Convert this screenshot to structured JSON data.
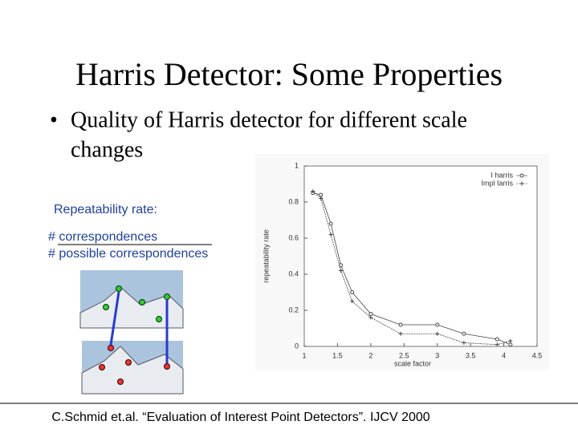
{
  "slide": {
    "title": "Harris Detector: Some Properties",
    "bullet": [
      "Quality of Harris detector for different scale",
      "changes"
    ],
    "label": "Repeatability rate:",
    "numerator": "# correspondences",
    "denominator": "# possible correspondences",
    "citation": "C.Schmid et.al. “Evaluation of Interest Point Detectors”. IJCV 2000"
  },
  "chart_data": {
    "type": "line",
    "xlabel": "scale factor",
    "ylabel": "repeatability rate",
    "x": [
      1.13,
      1.25,
      1.4,
      1.55,
      1.72,
      2.0,
      2.45,
      3.0,
      3.4,
      3.9,
      4.1
    ],
    "series": [
      {
        "name": "I harris",
        "color": "#444444",
        "marker": "circle",
        "values": [
          0.85,
          0.84,
          0.68,
          0.45,
          0.3,
          0.18,
          0.12,
          0.12,
          0.07,
          0.04,
          0.01
        ]
      },
      {
        "name": "Impl Iarris",
        "color": "#444444",
        "marker": "plus",
        "values": [
          0.86,
          0.82,
          0.62,
          0.42,
          0.25,
          0.16,
          0.07,
          0.07,
          0.02,
          0.01,
          0.03
        ]
      }
    ],
    "xlim": [
      1,
      4.5
    ],
    "xticks": [
      1,
      1.5,
      2,
      2.5,
      3,
      3.5,
      4,
      4.5
    ],
    "ylim": [
      0,
      1
    ],
    "yticks": [
      0,
      0.2,
      0.4,
      0.6,
      0.8,
      1
    ],
    "legend": "upper right"
  }
}
